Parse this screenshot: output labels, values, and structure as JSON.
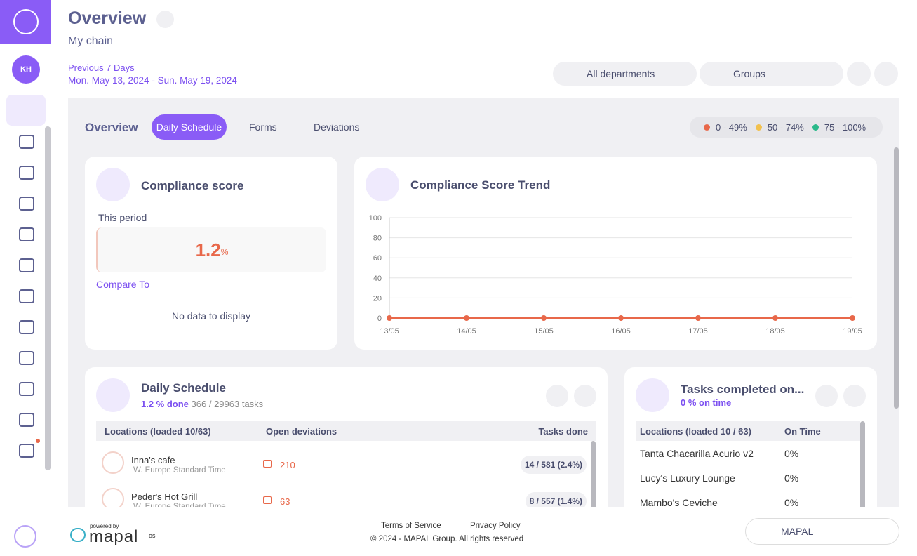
{
  "header": {
    "title": "Overview",
    "subtitle": "My chain",
    "period_label": "Previous 7 Days",
    "period_range": "Mon. May 13, 2024 - Sun. May 19, 2024",
    "avatar": "KH",
    "filters": [
      "All departments",
      "Groups"
    ]
  },
  "tabs": {
    "label": "Overview",
    "items": [
      "Daily Schedule",
      "Forms",
      "Deviations"
    ]
  },
  "legend": [
    {
      "label": "0 - 49%",
      "color": "#e8684a"
    },
    {
      "label": "50 - 74%",
      "color": "#f2c14e"
    },
    {
      "label": "75 - 100%",
      "color": "#2bb98a"
    }
  ],
  "compliance": {
    "title": "Compliance score",
    "period": "This period",
    "value": 1.2,
    "unit": "%",
    "compare": "Compare To",
    "empty": "No data to display"
  },
  "chart_data": {
    "type": "line",
    "title": "Compliance Score Trend",
    "categories": [
      "13/05",
      "14/05",
      "15/05",
      "16/05",
      "17/05",
      "18/05",
      "19/05"
    ],
    "values": [
      0,
      0,
      0,
      0,
      0,
      0,
      0
    ],
    "color": "#e8684a",
    "ylim": [
      0,
      100
    ],
    "yticks": [
      0,
      20,
      40,
      60,
      80,
      100
    ],
    "grid": true
  },
  "daily_schedule": {
    "title": "Daily Schedule",
    "done": "1.2 % done",
    "tasks": "366 / 29963 tasks",
    "columns": [
      "Locations (loaded 10/63)",
      "Open deviations",
      "Tasks done"
    ],
    "rows": [
      {
        "name": "Inna's cafe",
        "tz": "W. Europe Standard Time",
        "deviations": 210,
        "tasks": "14 / 581 (2.4%)"
      },
      {
        "name": "Peder's Hot Grill",
        "tz": "W. Europe Standard Time",
        "deviations": 63,
        "tasks": "8 / 557 (1.4%)"
      }
    ]
  },
  "tasks_on_time": {
    "title": "Tasks completed on...",
    "subtitle": "0 % on time",
    "columns": [
      "Locations (loaded 10 / 63)",
      "On Time"
    ],
    "rows": [
      [
        "Tanta Chacarilla Acurio v2",
        "0%"
      ],
      [
        "Lucy's Luxury Lounge",
        "0%"
      ],
      [
        "Mambo's Ceviche",
        "0%"
      ]
    ]
  },
  "footer": {
    "powered": "powered by",
    "brand": "mapal",
    "brand_sup": "os",
    "terms": "Terms of Service",
    "sep": "|",
    "privacy": "Privacy Policy",
    "copyright": "© 2024 - MAPAL Group. All rights reserved",
    "button": "MAPAL"
  }
}
